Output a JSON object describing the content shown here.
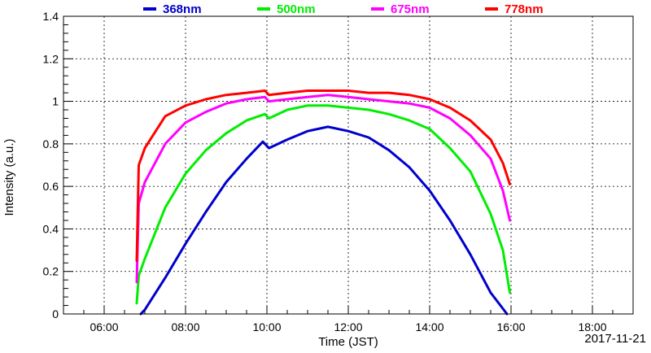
{
  "chart_data": {
    "type": "line",
    "title": "",
    "xlabel": "Time (JST)",
    "ylabel": "Intensity (a.u.)",
    "date_label": "2017-11-21",
    "x_unit": "hours (JST)",
    "xlim": [
      5.0,
      19.0
    ],
    "ylim": [
      0,
      1.4
    ],
    "x_ticks": [
      "06:00",
      "08:00",
      "10:00",
      "12:00",
      "14:00",
      "16:00",
      "18:00"
    ],
    "y_ticks": [
      "0",
      "0.2",
      "0.4",
      "0.6",
      "0.8",
      "1",
      "1.2",
      "1.4"
    ],
    "grid": true,
    "legend": "top",
    "series": [
      {
        "name": "368nm",
        "color": "#0000cc",
        "x": [
          6.9,
          7.0,
          7.5,
          8.0,
          8.5,
          9.0,
          9.5,
          9.9,
          10.05,
          10.5,
          11.0,
          11.5,
          12.0,
          12.5,
          13.0,
          13.5,
          14.0,
          14.5,
          15.0,
          15.5,
          15.9
        ],
        "y": [
          0.0,
          0.02,
          0.17,
          0.33,
          0.48,
          0.62,
          0.73,
          0.81,
          0.78,
          0.82,
          0.86,
          0.88,
          0.86,
          0.83,
          0.77,
          0.69,
          0.58,
          0.44,
          0.28,
          0.1,
          0.0
        ]
      },
      {
        "name": "500nm",
        "color": "#00ee00",
        "x": [
          6.8,
          6.85,
          7.0,
          7.5,
          8.0,
          8.5,
          9.0,
          9.5,
          9.95,
          10.05,
          10.5,
          11.0,
          11.5,
          12.0,
          12.5,
          13.0,
          13.5,
          14.0,
          14.5,
          15.0,
          15.5,
          15.8,
          15.97
        ],
        "y": [
          0.05,
          0.18,
          0.26,
          0.5,
          0.66,
          0.77,
          0.85,
          0.91,
          0.94,
          0.92,
          0.96,
          0.98,
          0.98,
          0.97,
          0.96,
          0.94,
          0.91,
          0.87,
          0.78,
          0.67,
          0.47,
          0.3,
          0.1
        ]
      },
      {
        "name": "675nm",
        "color": "#ff00ff",
        "x": [
          6.8,
          6.85,
          7.0,
          7.5,
          8.0,
          8.5,
          9.0,
          9.5,
          9.95,
          10.05,
          10.5,
          11.0,
          11.5,
          12.0,
          12.5,
          13.0,
          13.5,
          14.0,
          14.5,
          15.0,
          15.5,
          15.8,
          15.97
        ],
        "y": [
          0.15,
          0.52,
          0.62,
          0.8,
          0.9,
          0.95,
          0.99,
          1.01,
          1.02,
          1.0,
          1.01,
          1.02,
          1.03,
          1.02,
          1.01,
          1.0,
          0.99,
          0.97,
          0.92,
          0.84,
          0.73,
          0.58,
          0.44
        ]
      },
      {
        "name": "778nm",
        "color": "#ff0000",
        "x": [
          6.8,
          6.85,
          7.0,
          7.5,
          8.0,
          8.5,
          9.0,
          9.5,
          9.95,
          10.05,
          10.5,
          11.0,
          11.5,
          12.0,
          12.5,
          13.0,
          13.5,
          14.0,
          14.5,
          15.0,
          15.5,
          15.8,
          15.97
        ],
        "y": [
          0.25,
          0.7,
          0.78,
          0.93,
          0.98,
          1.01,
          1.03,
          1.04,
          1.05,
          1.03,
          1.04,
          1.05,
          1.05,
          1.05,
          1.04,
          1.04,
          1.03,
          1.01,
          0.97,
          0.91,
          0.82,
          0.71,
          0.61
        ]
      }
    ]
  }
}
